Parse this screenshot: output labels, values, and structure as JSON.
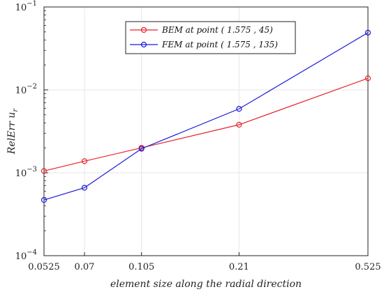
{
  "chart_data": {
    "type": "line",
    "xlabel": "element size along the radial direction",
    "ylabel_main": "RelErr u",
    "ylabel_sub": "r",
    "x_scale": "log",
    "y_scale": "log",
    "xlim": [
      0.0525,
      0.525
    ],
    "ylim": [
      0.0001,
      0.1
    ],
    "x_ticks": [
      "0.0525",
      "0.07",
      "0.105",
      "0.21",
      "0.525"
    ],
    "x_tick_values": [
      0.0525,
      0.07,
      0.105,
      0.21,
      0.525
    ],
    "y_ticks": [
      {
        "value": 0.0001,
        "base": "10",
        "exp": "−4"
      },
      {
        "value": 0.001,
        "base": "10",
        "exp": "−3"
      },
      {
        "value": 0.01,
        "base": "10",
        "exp": "−2"
      },
      {
        "value": 0.1,
        "base": "10",
        "exp": "−1"
      }
    ],
    "grid": true,
    "legend_position": "top-center",
    "x": [
      0.0525,
      0.07,
      0.105,
      0.21,
      0.525
    ],
    "series": [
      {
        "name": "BEM at point ( 1.575 , 45)",
        "color": "#e8232a",
        "marker": "circle",
        "values": [
          0.00105,
          0.00138,
          0.002,
          0.0038,
          0.0138
        ]
      },
      {
        "name": "FEM at point ( 1.575 , 135)",
        "color": "#1a1adb",
        "marker": "circle",
        "values": [
          0.00047,
          0.00066,
          0.00195,
          0.0059,
          0.049
        ]
      }
    ]
  }
}
